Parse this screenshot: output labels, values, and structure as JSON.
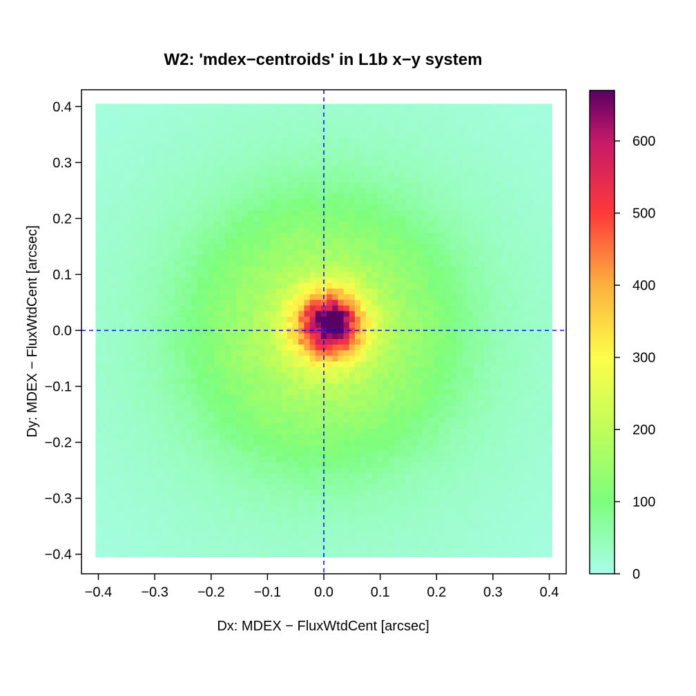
{
  "chart_data": {
    "type": "heatmap",
    "title": "W2: 'mdex−centroids' in L1b x−y system",
    "xlabel": "Dx: MDEX − FluxWtdCent [arcsec]",
    "ylabel": "Dy: MDEX − FluxWtdCent [arcsec]",
    "xlim": [
      -0.43,
      0.43
    ],
    "ylim": [
      -0.435,
      0.43
    ],
    "x_ticks": [
      -0.4,
      -0.3,
      -0.2,
      -0.1,
      0.0,
      0.1,
      0.2,
      0.3,
      0.4
    ],
    "x_tick_labels": [
      "−0.4",
      "−0.3",
      "−0.2",
      "−0.1",
      "0.0",
      "0.1",
      "0.2",
      "0.3",
      "0.4"
    ],
    "y_ticks": [
      -0.4,
      -0.3,
      -0.2,
      -0.1,
      0.0,
      0.1,
      0.2,
      0.3,
      0.4
    ],
    "y_tick_labels": [
      "−0.4",
      "−0.3",
      "−0.2",
      "−0.1",
      "0.0",
      "0.1",
      "0.2",
      "0.3",
      "0.4"
    ],
    "bins": {
      "x_range": [
        -0.405,
        0.405
      ],
      "y_range": [
        -0.405,
        0.405
      ],
      "n": 81
    },
    "peak": {
      "x": 0.02,
      "y": 0.02,
      "value": 670
    },
    "reference_lines": [
      {
        "axis": "x",
        "value": 0.0,
        "style": "dashed",
        "color": "#0000ff"
      },
      {
        "axis": "y",
        "value": 0.0,
        "style": "dashed",
        "color": "#0000ff"
      }
    ],
    "colorbar": {
      "min": 0,
      "max": 670,
      "ticks": [
        0,
        100,
        200,
        300,
        400,
        500,
        600
      ],
      "tick_labels": [
        "0",
        "100",
        "200",
        "300",
        "400",
        "500",
        "600"
      ],
      "colormap": [
        {
          "value": 0,
          "color": "#a8fde8"
        },
        {
          "value": 100,
          "color": "#7dfd7d"
        },
        {
          "value": 200,
          "color": "#bffd5a"
        },
        {
          "value": 300,
          "color": "#fdfd4a"
        },
        {
          "value": 400,
          "color": "#fdb040"
        },
        {
          "value": 500,
          "color": "#fd3a3a"
        },
        {
          "value": 600,
          "color": "#c41a6a"
        },
        {
          "value": 670,
          "color": "#5a0064"
        }
      ]
    }
  }
}
